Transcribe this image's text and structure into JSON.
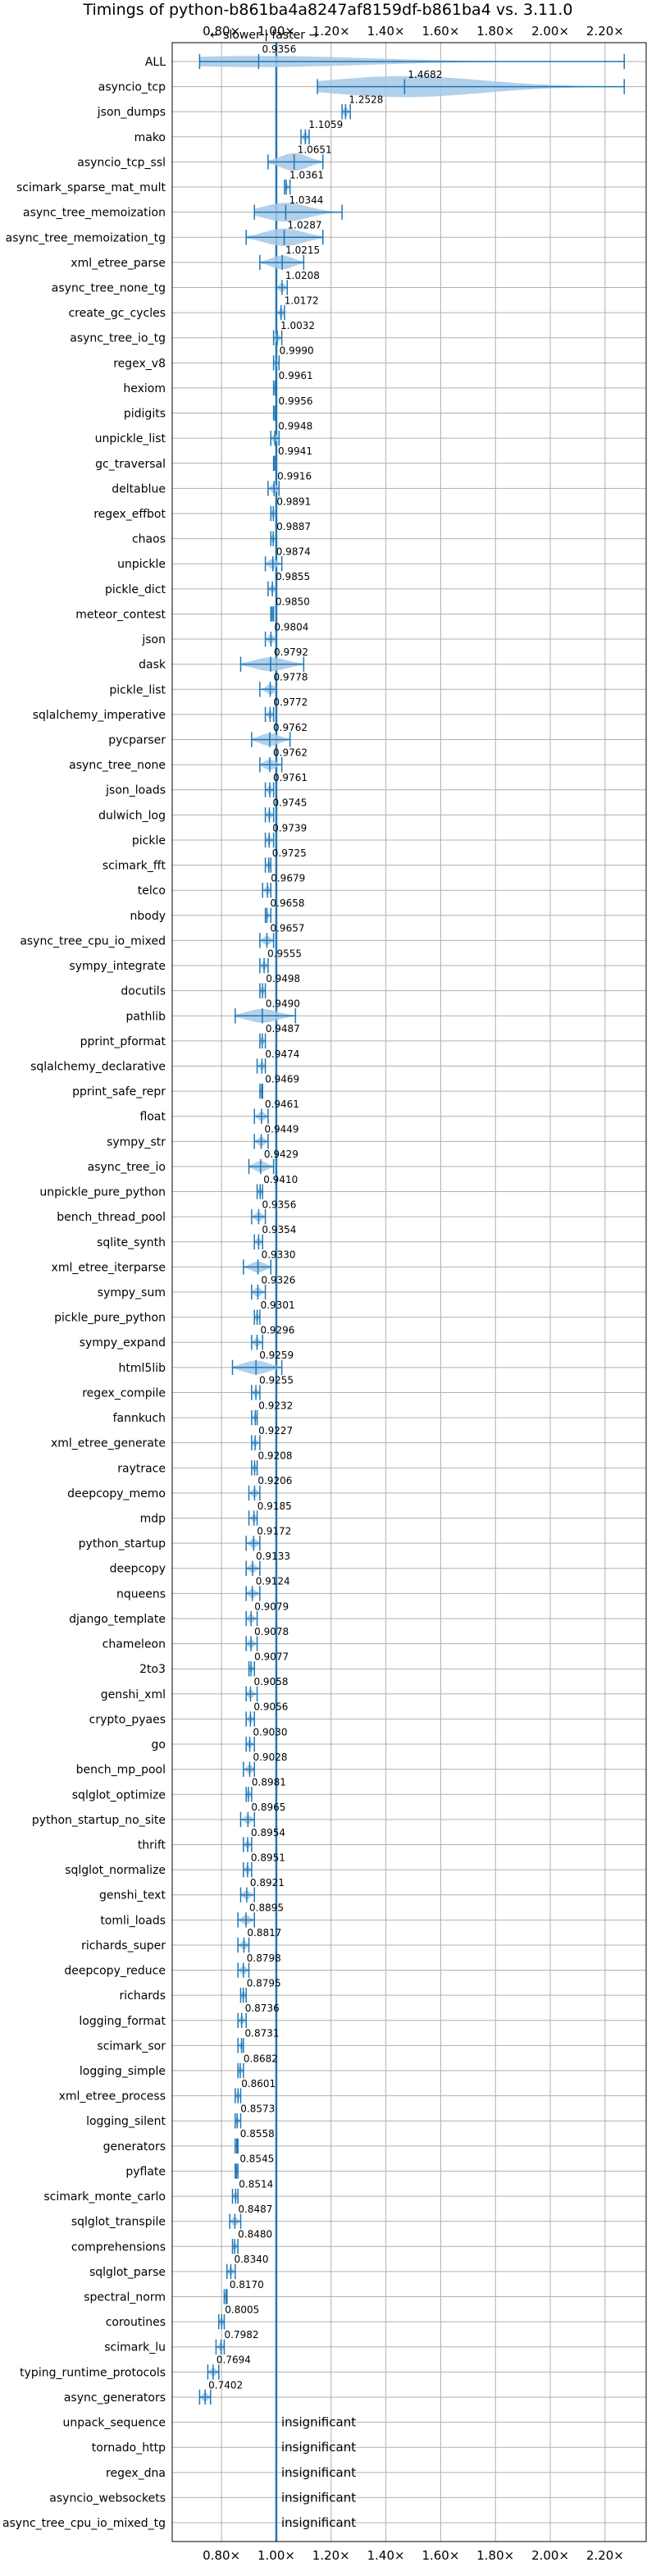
{
  "chart_data": {
    "type": "violin",
    "title": "Timings of python-b861ba4a8247af8159df-b861ba4 vs. 3.11.0",
    "annotation": "← slower | faster →",
    "xlim": [
      0.62,
      2.35
    ],
    "xticks": [
      0.8,
      1.0,
      1.2,
      1.4,
      1.6,
      1.8,
      2.0,
      2.2
    ],
    "xtick_labels": [
      "0.80×",
      "1.00×",
      "1.20×",
      "1.40×",
      "1.60×",
      "1.80×",
      "2.00×",
      "2.20×"
    ],
    "reference_line": 1.0,
    "grid": true,
    "insignificant_text": "insignificant",
    "benchmarks": [
      {
        "name": "ALL",
        "value": 0.9356,
        "min": 0.72,
        "max": 2.27,
        "spread": 0.03
      },
      {
        "name": "asyncio_tcp",
        "value": 1.4682,
        "min": 1.15,
        "max": 2.27,
        "spread": 0.35
      },
      {
        "name": "json_dumps",
        "value": 1.2528,
        "min": 1.24,
        "max": 1.27,
        "spread": 0.02
      },
      {
        "name": "mako",
        "value": 1.1059,
        "min": 1.09,
        "max": 1.12,
        "spread": 0.015
      },
      {
        "name": "asyncio_tcp_ssl",
        "value": 1.0651,
        "min": 0.97,
        "max": 1.17,
        "spread": 0.08
      },
      {
        "name": "scimark_sparse_mat_mult",
        "value": 1.0361,
        "min": 1.03,
        "max": 1.05,
        "spread": 0.01
      },
      {
        "name": "async_tree_memoization",
        "value": 1.0344,
        "min": 0.92,
        "max": 1.24,
        "spread": 0.09
      },
      {
        "name": "async_tree_memoization_tg",
        "value": 1.0287,
        "min": 0.89,
        "max": 1.17,
        "spread": 0.08
      },
      {
        "name": "xml_etree_parse",
        "value": 1.0215,
        "min": 0.94,
        "max": 1.1,
        "spread": 0.05
      },
      {
        "name": "async_tree_none_tg",
        "value": 1.0208,
        "min": 1.0,
        "max": 1.04,
        "spread": 0.015
      },
      {
        "name": "create_gc_cycles",
        "value": 1.0172,
        "min": 1.0,
        "max": 1.03,
        "spread": 0.012
      },
      {
        "name": "async_tree_io_tg",
        "value": 1.0032,
        "min": 0.99,
        "max": 1.02,
        "spread": 0.012
      },
      {
        "name": "regex_v8",
        "value": 0.999,
        "min": 0.99,
        "max": 1.01,
        "spread": 0.01
      },
      {
        "name": "hexiom",
        "value": 0.9961,
        "min": 0.99,
        "max": 1.0,
        "spread": 0.006
      },
      {
        "name": "pidigits",
        "value": 0.9956,
        "min": 0.99,
        "max": 1.0,
        "spread": 0.006
      },
      {
        "name": "unpickle_list",
        "value": 0.9948,
        "min": 0.98,
        "max": 1.01,
        "spread": 0.012
      },
      {
        "name": "gc_traversal",
        "value": 0.9941,
        "min": 0.99,
        "max": 1.0,
        "spread": 0.006
      },
      {
        "name": "deltablue",
        "value": 0.9916,
        "min": 0.97,
        "max": 1.01,
        "spread": 0.015
      },
      {
        "name": "regex_effbot",
        "value": 0.9891,
        "min": 0.98,
        "max": 1.0,
        "spread": 0.008
      },
      {
        "name": "chaos",
        "value": 0.9887,
        "min": 0.98,
        "max": 1.0,
        "spread": 0.008
      },
      {
        "name": "unpickle",
        "value": 0.9874,
        "min": 0.96,
        "max": 1.02,
        "spread": 0.02
      },
      {
        "name": "pickle_dict",
        "value": 0.9855,
        "min": 0.97,
        "max": 1.0,
        "spread": 0.01
      },
      {
        "name": "meteor_contest",
        "value": 0.985,
        "min": 0.98,
        "max": 0.99,
        "spread": 0.006
      },
      {
        "name": "json",
        "value": 0.9804,
        "min": 0.96,
        "max": 1.0,
        "spread": 0.015
      },
      {
        "name": "dask",
        "value": 0.9792,
        "min": 0.87,
        "max": 1.1,
        "spread": 0.05
      },
      {
        "name": "pickle_list",
        "value": 0.9778,
        "min": 0.94,
        "max": 1.0,
        "spread": 0.02
      },
      {
        "name": "sqlalchemy_imperative",
        "value": 0.9772,
        "min": 0.96,
        "max": 0.99,
        "spread": 0.01
      },
      {
        "name": "pycparser",
        "value": 0.9762,
        "min": 0.91,
        "max": 1.05,
        "spread": 0.04
      },
      {
        "name": "async_tree_none",
        "value": 0.9762,
        "min": 0.94,
        "max": 1.02,
        "spread": 0.025
      },
      {
        "name": "json_loads",
        "value": 0.9761,
        "min": 0.96,
        "max": 0.99,
        "spread": 0.01
      },
      {
        "name": "dulwich_log",
        "value": 0.9745,
        "min": 0.96,
        "max": 0.99,
        "spread": 0.01
      },
      {
        "name": "pickle",
        "value": 0.9739,
        "min": 0.96,
        "max": 0.99,
        "spread": 0.01
      },
      {
        "name": "scimark_fft",
        "value": 0.9725,
        "min": 0.96,
        "max": 0.98,
        "spread": 0.008
      },
      {
        "name": "telco",
        "value": 0.9679,
        "min": 0.95,
        "max": 0.98,
        "spread": 0.01
      },
      {
        "name": "nbody",
        "value": 0.9658,
        "min": 0.96,
        "max": 0.98,
        "spread": 0.006
      },
      {
        "name": "async_tree_cpu_io_mixed",
        "value": 0.9657,
        "min": 0.94,
        "max": 0.99,
        "spread": 0.015
      },
      {
        "name": "sympy_integrate",
        "value": 0.9555,
        "min": 0.94,
        "max": 0.97,
        "spread": 0.01
      },
      {
        "name": "docutils",
        "value": 0.9498,
        "min": 0.94,
        "max": 0.96,
        "spread": 0.008
      },
      {
        "name": "pathlib",
        "value": 0.949,
        "min": 0.85,
        "max": 1.07,
        "spread": 0.05
      },
      {
        "name": "pprint_pformat",
        "value": 0.9487,
        "min": 0.94,
        "max": 0.96,
        "spread": 0.006
      },
      {
        "name": "sqlalchemy_declarative",
        "value": 0.9474,
        "min": 0.93,
        "max": 0.96,
        "spread": 0.01
      },
      {
        "name": "pprint_safe_repr",
        "value": 0.9469,
        "min": 0.94,
        "max": 0.95,
        "spread": 0.005
      },
      {
        "name": "float",
        "value": 0.9461,
        "min": 0.92,
        "max": 0.97,
        "spread": 0.015
      },
      {
        "name": "sympy_str",
        "value": 0.9449,
        "min": 0.92,
        "max": 0.97,
        "spread": 0.015
      },
      {
        "name": "async_tree_io",
        "value": 0.9429,
        "min": 0.9,
        "max": 0.99,
        "spread": 0.03
      },
      {
        "name": "unpickle_pure_python",
        "value": 0.941,
        "min": 0.93,
        "max": 0.95,
        "spread": 0.006
      },
      {
        "name": "bench_thread_pool",
        "value": 0.9356,
        "min": 0.91,
        "max": 0.96,
        "spread": 0.015
      },
      {
        "name": "sqlite_synth",
        "value": 0.9354,
        "min": 0.92,
        "max": 0.95,
        "spread": 0.008
      },
      {
        "name": "xml_etree_iterparse",
        "value": 0.933,
        "min": 0.88,
        "max": 0.98,
        "spread": 0.03
      },
      {
        "name": "sympy_sum",
        "value": 0.9326,
        "min": 0.91,
        "max": 0.96,
        "spread": 0.015
      },
      {
        "name": "pickle_pure_python",
        "value": 0.9301,
        "min": 0.92,
        "max": 0.94,
        "spread": 0.006
      },
      {
        "name": "sympy_expand",
        "value": 0.9296,
        "min": 0.91,
        "max": 0.95,
        "spread": 0.01
      },
      {
        "name": "html5lib",
        "value": 0.9259,
        "min": 0.84,
        "max": 1.02,
        "spread": 0.05
      },
      {
        "name": "regex_compile",
        "value": 0.9255,
        "min": 0.91,
        "max": 0.94,
        "spread": 0.006
      },
      {
        "name": "fannkuch",
        "value": 0.9232,
        "min": 0.91,
        "max": 0.93,
        "spread": 0.006
      },
      {
        "name": "xml_etree_generate",
        "value": 0.9227,
        "min": 0.91,
        "max": 0.94,
        "spread": 0.006
      },
      {
        "name": "raytrace",
        "value": 0.9208,
        "min": 0.91,
        "max": 0.93,
        "spread": 0.006
      },
      {
        "name": "deepcopy_memo",
        "value": 0.9206,
        "min": 0.9,
        "max": 0.94,
        "spread": 0.012
      },
      {
        "name": "mdp",
        "value": 0.9185,
        "min": 0.9,
        "max": 0.93,
        "spread": 0.008
      },
      {
        "name": "python_startup",
        "value": 0.9172,
        "min": 0.89,
        "max": 0.94,
        "spread": 0.015
      },
      {
        "name": "deepcopy",
        "value": 0.9133,
        "min": 0.89,
        "max": 0.94,
        "spread": 0.012
      },
      {
        "name": "nqueens",
        "value": 0.9124,
        "min": 0.89,
        "max": 0.94,
        "spread": 0.012
      },
      {
        "name": "django_template",
        "value": 0.9079,
        "min": 0.89,
        "max": 0.93,
        "spread": 0.01
      },
      {
        "name": "chameleon",
        "value": 0.9078,
        "min": 0.89,
        "max": 0.93,
        "spread": 0.01
      },
      {
        "name": "2to3",
        "value": 0.9077,
        "min": 0.9,
        "max": 0.92,
        "spread": 0.006
      },
      {
        "name": "genshi_xml",
        "value": 0.9058,
        "min": 0.89,
        "max": 0.93,
        "spread": 0.01
      },
      {
        "name": "crypto_pyaes",
        "value": 0.9056,
        "min": 0.89,
        "max": 0.92,
        "spread": 0.008
      },
      {
        "name": "go",
        "value": 0.903,
        "min": 0.89,
        "max": 0.92,
        "spread": 0.006
      },
      {
        "name": "bench_mp_pool",
        "value": 0.9028,
        "min": 0.88,
        "max": 0.92,
        "spread": 0.012
      },
      {
        "name": "sqlglot_optimize",
        "value": 0.8981,
        "min": 0.89,
        "max": 0.91,
        "spread": 0.006
      },
      {
        "name": "python_startup_no_site",
        "value": 0.8965,
        "min": 0.87,
        "max": 0.92,
        "spread": 0.012
      },
      {
        "name": "thrift",
        "value": 0.8954,
        "min": 0.88,
        "max": 0.91,
        "spread": 0.008
      },
      {
        "name": "sqlglot_normalize",
        "value": 0.8951,
        "min": 0.88,
        "max": 0.91,
        "spread": 0.006
      },
      {
        "name": "genshi_text",
        "value": 0.8921,
        "min": 0.87,
        "max": 0.92,
        "spread": 0.012
      },
      {
        "name": "tomli_loads",
        "value": 0.8895,
        "min": 0.86,
        "max": 0.92,
        "spread": 0.015
      },
      {
        "name": "richards_super",
        "value": 0.8817,
        "min": 0.86,
        "max": 0.9,
        "spread": 0.012
      },
      {
        "name": "deepcopy_reduce",
        "value": 0.8798,
        "min": 0.86,
        "max": 0.9,
        "spread": 0.01
      },
      {
        "name": "richards",
        "value": 0.8795,
        "min": 0.87,
        "max": 0.89,
        "spread": 0.008
      },
      {
        "name": "logging_format",
        "value": 0.8736,
        "min": 0.86,
        "max": 0.89,
        "spread": 0.008
      },
      {
        "name": "scimark_sor",
        "value": 0.8731,
        "min": 0.86,
        "max": 0.88,
        "spread": 0.006
      },
      {
        "name": "logging_simple",
        "value": 0.8682,
        "min": 0.86,
        "max": 0.88,
        "spread": 0.006
      },
      {
        "name": "xml_etree_process",
        "value": 0.8601,
        "min": 0.85,
        "max": 0.87,
        "spread": 0.006
      },
      {
        "name": "logging_silent",
        "value": 0.8573,
        "min": 0.85,
        "max": 0.87,
        "spread": 0.006
      },
      {
        "name": "generators",
        "value": 0.8558,
        "min": 0.85,
        "max": 0.86,
        "spread": 0.005
      },
      {
        "name": "pyflate",
        "value": 0.8545,
        "min": 0.85,
        "max": 0.86,
        "spread": 0.005
      },
      {
        "name": "scimark_monte_carlo",
        "value": 0.8514,
        "min": 0.84,
        "max": 0.86,
        "spread": 0.006
      },
      {
        "name": "sqlglot_transpile",
        "value": 0.8487,
        "min": 0.83,
        "max": 0.87,
        "spread": 0.012
      },
      {
        "name": "comprehensions",
        "value": 0.848,
        "min": 0.84,
        "max": 0.86,
        "spread": 0.006
      },
      {
        "name": "sqlglot_parse",
        "value": 0.834,
        "min": 0.82,
        "max": 0.85,
        "spread": 0.008
      },
      {
        "name": "spectral_norm",
        "value": 0.817,
        "min": 0.81,
        "max": 0.82,
        "spread": 0.005
      },
      {
        "name": "coroutines",
        "value": 0.8005,
        "min": 0.79,
        "max": 0.81,
        "spread": 0.006
      },
      {
        "name": "scimark_lu",
        "value": 0.7982,
        "min": 0.78,
        "max": 0.81,
        "spread": 0.008
      },
      {
        "name": "typing_runtime_protocols",
        "value": 0.7694,
        "min": 0.75,
        "max": 0.79,
        "spread": 0.012
      },
      {
        "name": "async_generators",
        "value": 0.7402,
        "min": 0.72,
        "max": 0.76,
        "spread": 0.012
      },
      {
        "name": "unpack_sequence",
        "insignificant": true
      },
      {
        "name": "tornado_http",
        "insignificant": true
      },
      {
        "name": "regex_dna",
        "insignificant": true
      },
      {
        "name": "asyncio_websockets",
        "insignificant": true
      },
      {
        "name": "async_tree_cpu_io_mixed_tg",
        "insignificant": true
      }
    ],
    "colors": {
      "violin_fill": "#a6c8e6",
      "violin_edge": "#1f77b4",
      "median": "#1f77b4",
      "mean_marker": "#d62728",
      "reference_line": "#1f77b4",
      "grid": "#b0b0b0"
    }
  }
}
